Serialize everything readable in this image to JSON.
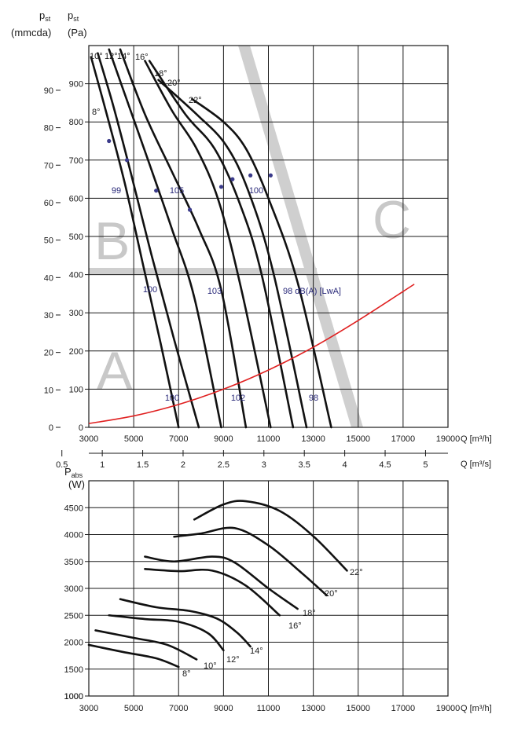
{
  "chart_data": [
    {
      "type": "line",
      "axes": {
        "y_left_outer": {
          "label_main": "p",
          "label_sub": "st",
          "unit": "(mmcda)",
          "ticks": [
            0,
            10,
            20,
            30,
            40,
            50,
            60,
            70,
            80,
            90
          ]
        },
        "y_left_inner": {
          "label_main": "p",
          "label_sub": "st",
          "unit": "(Pa)",
          "ticks": [
            0,
            100,
            200,
            300,
            400,
            500,
            600,
            700,
            800,
            900
          ],
          "ylim": [
            0,
            1000
          ]
        },
        "x_bottom": {
          "label": "Q [m³/h]",
          "ticks": [
            3000,
            5000,
            7000,
            9000,
            11000,
            13000,
            15000,
            17000,
            19000
          ],
          "xlim": [
            3000,
            19000
          ]
        },
        "x_secondary": {
          "label": "Q [m³/s]",
          "ticks": [
            "0.5",
            "1",
            "1.5",
            "2",
            "2.5",
            "3",
            "3.5",
            "4",
            "4.5",
            "5"
          ],
          "values": [
            0.5,
            1,
            1.5,
            2,
            2.5,
            3,
            3.5,
            4,
            4.5,
            5
          ]
        }
      },
      "series": [
        {
          "name": "8°",
          "points": [
            [
              3100,
              970
            ],
            [
              3800,
              820
            ],
            [
              4600,
              640
            ],
            [
              5400,
              430
            ],
            [
              6200,
              220
            ],
            [
              7000,
              0
            ]
          ]
        },
        {
          "name": "10°",
          "points": [
            [
              3400,
              980
            ],
            [
              4100,
              840
            ],
            [
              4900,
              660
            ],
            [
              5800,
              450
            ],
            [
              6800,
              230
            ],
            [
              7900,
              0
            ]
          ]
        },
        {
          "name": "12°",
          "points": [
            [
              3900,
              990
            ],
            [
              4800,
              840
            ],
            [
              5700,
              690
            ],
            [
              6700,
              520
            ],
            [
              7700,
              340
            ],
            [
              8900,
              0
            ]
          ]
        },
        {
          "name": "14°",
          "points": [
            [
              4400,
              990
            ],
            [
              5500,
              820
            ],
            [
              6700,
              670
            ],
            [
              7900,
              520
            ],
            [
              8900,
              360
            ],
            [
              10000,
              0
            ]
          ]
        },
        {
          "name": "16°",
          "points": [
            [
              5500,
              960
            ],
            [
              6700,
              830
            ],
            [
              7800,
              730
            ],
            [
              8800,
              590
            ],
            [
              9800,
              360
            ],
            [
              11100,
              0
            ]
          ]
        },
        {
          "name": "18°",
          "points": [
            [
              5700,
              960
            ],
            [
              7300,
              820
            ],
            [
              8600,
              730
            ],
            [
              9700,
              590
            ],
            [
              10700,
              400
            ],
            [
              12100,
              0
            ]
          ]
        },
        {
          "name": "20°",
          "points": [
            [
              6100,
              910
            ],
            [
              7800,
              820
            ],
            [
              9100,
              740
            ],
            [
              10100,
              620
            ],
            [
              11200,
              410
            ],
            [
              12700,
              0
            ]
          ]
        },
        {
          "name": "22°",
          "points": [
            [
              7600,
              860
            ],
            [
              9000,
              800
            ],
            [
              10000,
              730
            ],
            [
              11000,
              600
            ],
            [
              12300,
              380
            ],
            [
              13800,
              0
            ]
          ]
        }
      ],
      "operating_curve": {
        "name": "system curve",
        "color": "#e02020",
        "points": [
          [
            3000,
            10
          ],
          [
            5000,
            30
          ],
          [
            7000,
            60
          ],
          [
            9000,
            100
          ],
          [
            11000,
            150
          ],
          [
            13000,
            210
          ],
          [
            15000,
            280
          ],
          [
            17500,
            375
          ]
        ]
      },
      "marker_points": [
        [
          3900,
          750
        ],
        [
          4700,
          700
        ],
        [
          6000,
          620
        ],
        [
          7500,
          570
        ],
        [
          8900,
          630
        ],
        [
          9400,
          650
        ],
        [
          10200,
          660
        ],
        [
          11100,
          660
        ]
      ],
      "annotations": [
        {
          "text": "8°"
        },
        {
          "text": "10°"
        },
        {
          "text": "12°"
        },
        {
          "text": "14°"
        },
        {
          "text": "16°"
        },
        {
          "text": "18°"
        },
        {
          "text": "20°"
        },
        {
          "text": "22°"
        },
        {
          "text": "99"
        },
        {
          "text": "105"
        },
        {
          "text": "100"
        },
        {
          "text": "100"
        },
        {
          "text": "103"
        },
        {
          "text": "98 dB(A) [LwA]"
        },
        {
          "text": "100"
        },
        {
          "text": "102"
        },
        {
          "text": "98"
        }
      ],
      "regions": [
        "A",
        "B",
        "C"
      ],
      "grid": true
    },
    {
      "type": "line",
      "axes": {
        "y": {
          "label_main": "P",
          "label_sub": "abs",
          "unit": "(W)",
          "ticks": [
            1000,
            1500,
            2000,
            2500,
            3000,
            3500,
            4000,
            4500
          ],
          "ylim": [
            1000,
            5000
          ]
        },
        "x": {
          "label": "Q [m³/h]",
          "ticks": [
            3000,
            5000,
            7000,
            9000,
            11000,
            13000,
            15000,
            17000,
            19000
          ],
          "xlim": [
            3000,
            19000
          ]
        }
      },
      "series": [
        {
          "name": "8°",
          "points": [
            [
              3000,
              1950
            ],
            [
              4500,
              1820
            ],
            [
              6000,
              1700
            ],
            [
              7000,
              1540
            ]
          ]
        },
        {
          "name": "10°",
          "points": [
            [
              3300,
              2220
            ],
            [
              5000,
              2080
            ],
            [
              6500,
              1950
            ],
            [
              7800,
              1680
            ]
          ]
        },
        {
          "name": "12°",
          "points": [
            [
              3900,
              2500
            ],
            [
              5500,
              2430
            ],
            [
              7000,
              2380
            ],
            [
              8300,
              2170
            ],
            [
              9000,
              1850
            ]
          ]
        },
        {
          "name": "14°",
          "points": [
            [
              4400,
              2800
            ],
            [
              6000,
              2650
            ],
            [
              7500,
              2580
            ],
            [
              8700,
              2440
            ],
            [
              9600,
              2180
            ],
            [
              10200,
              1920
            ]
          ]
        },
        {
          "name": "16°",
          "points": [
            [
              5500,
              3360
            ],
            [
              7000,
              3320
            ],
            [
              8500,
              3330
            ],
            [
              10000,
              3050
            ],
            [
              11500,
              2500
            ]
          ]
        },
        {
          "name": "18°",
          "points": [
            [
              5500,
              3590
            ],
            [
              6800,
              3500
            ],
            [
              8500,
              3590
            ],
            [
              9500,
              3480
            ],
            [
              11000,
              3000
            ],
            [
              12300,
              2620
            ]
          ]
        },
        {
          "name": "20°",
          "points": [
            [
              6800,
              3960
            ],
            [
              8000,
              4020
            ],
            [
              9500,
              4120
            ],
            [
              11000,
              3800
            ],
            [
              12500,
              3280
            ],
            [
              13600,
              2870
            ]
          ]
        },
        {
          "name": "22°",
          "points": [
            [
              7700,
              4280
            ],
            [
              9000,
              4560
            ],
            [
              10000,
              4620
            ],
            [
              11500,
              4440
            ],
            [
              13000,
              3970
            ],
            [
              14500,
              3330
            ]
          ]
        }
      ],
      "grid": true
    }
  ],
  "region_labels": {
    "a": "A",
    "b": "B",
    "c": "C"
  },
  "colors": {
    "curve": "#111111",
    "system_curve": "#e02020",
    "region_bands": "#c8c8c8",
    "annotation": "#2a2a7a"
  }
}
